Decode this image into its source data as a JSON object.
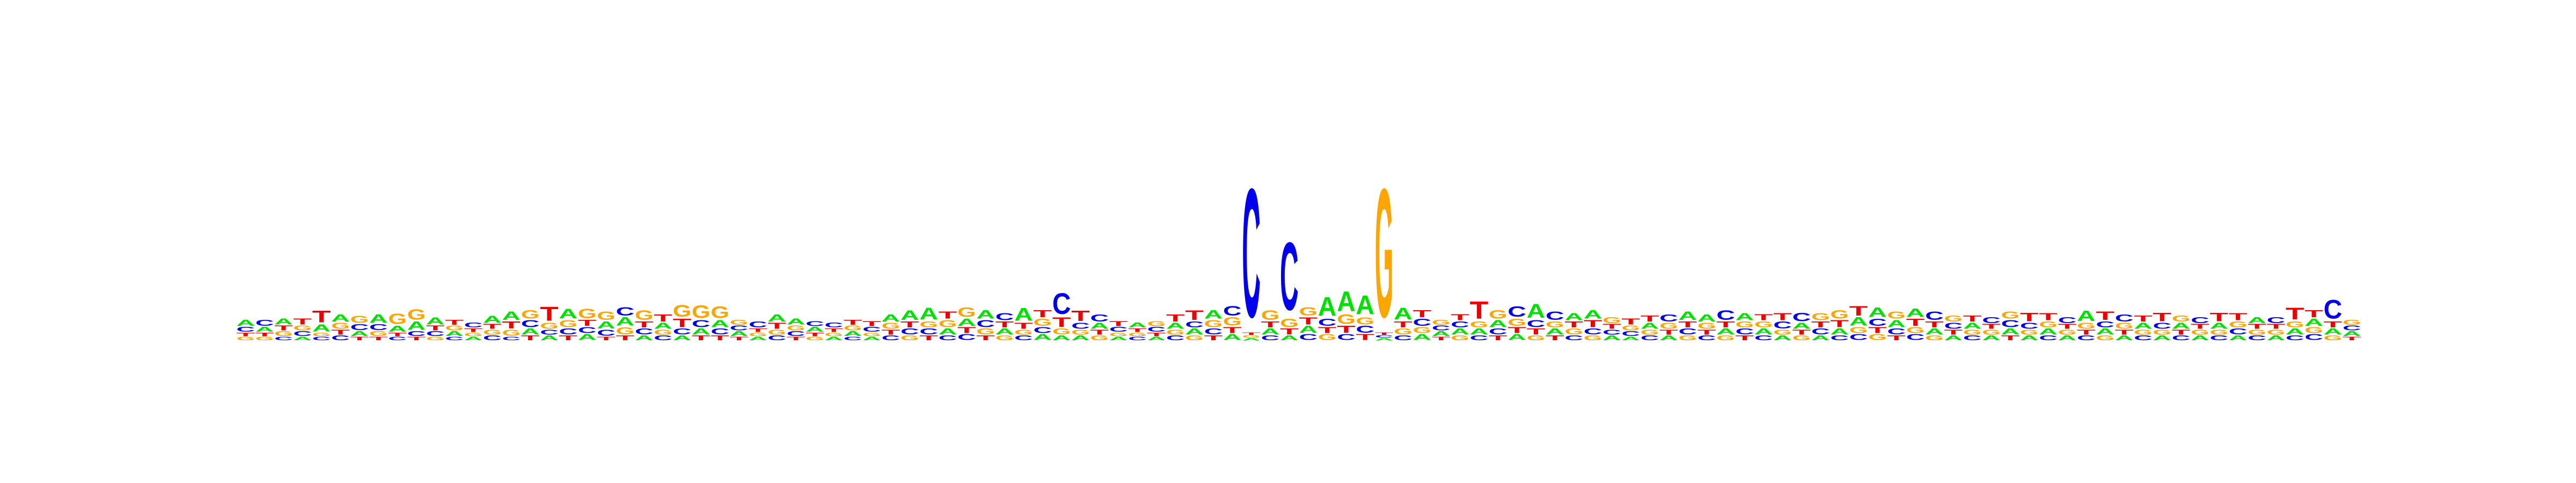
{
  "chart_data": {
    "type": "sequence-logo",
    "title": "",
    "xlabel": "",
    "ylabel": "",
    "axes_visible": false,
    "ylim": [
      0,
      2
    ],
    "alphabet": [
      "A",
      "C",
      "G",
      "T"
    ],
    "colors": {
      "A": "#00e000",
      "C": "#0000ee",
      "G": "#ffa500",
      "T": "#ee0000"
    },
    "positions": [
      {
        "A": 0.05,
        "C": 0.04,
        "G": 0.03,
        "T": 0.03
      },
      {
        "A": 0.04,
        "C": 0.05,
        "G": 0.03,
        "T": 0.03
      },
      {
        "A": 0.05,
        "C": 0.03,
        "G": 0.04,
        "T": 0.04
      },
      {
        "A": 0.03,
        "C": 0.04,
        "G": 0.04,
        "T": 0.05
      },
      {
        "A": 0.06,
        "C": 0.03,
        "G": 0.03,
        "T": 0.1
      },
      {
        "A": 0.06,
        "C": 0.04,
        "G": 0.05,
        "T": 0.04
      },
      {
        "A": 0.04,
        "C": 0.05,
        "G": 0.06,
        "T": 0.03
      },
      {
        "A": 0.07,
        "C": 0.05,
        "G": 0.04,
        "T": 0.03
      },
      {
        "A": 0.05,
        "C": 0.03,
        "G": 0.09,
        "T": 0.03
      },
      {
        "A": 0.07,
        "C": 0.04,
        "G": 0.09,
        "T": 0.03
      },
      {
        "A": 0.06,
        "C": 0.04,
        "G": 0.03,
        "T": 0.04
      },
      {
        "A": 0.04,
        "C": 0.03,
        "G": 0.04,
        "T": 0.04
      },
      {
        "A": 0.03,
        "C": 0.04,
        "G": 0.03,
        "T": 0.03
      },
      {
        "A": 0.06,
        "C": 0.04,
        "G": 0.04,
        "T": 0.04
      },
      {
        "A": 0.07,
        "C": 0.03,
        "G": 0.05,
        "T": 0.06
      },
      {
        "A": 0.05,
        "C": 0.06,
        "G": 0.07,
        "T": 0.04
      },
      {
        "A": 0.04,
        "C": 0.04,
        "G": 0.05,
        "T": 0.12
      },
      {
        "A": 0.08,
        "C": 0.05,
        "G": 0.06,
        "T": 0.04
      },
      {
        "A": 0.05,
        "C": 0.05,
        "G": 0.08,
        "T": 0.05
      },
      {
        "A": 0.06,
        "C": 0.05,
        "G": 0.07,
        "T": 0.03
      },
      {
        "A": 0.07,
        "C": 0.07,
        "G": 0.06,
        "T": 0.04
      },
      {
        "A": 0.04,
        "C": 0.05,
        "G": 0.08,
        "T": 0.05
      },
      {
        "A": 0.05,
        "C": 0.04,
        "G": 0.04,
        "T": 0.06
      },
      {
        "A": 0.04,
        "C": 0.05,
        "G": 0.1,
        "T": 0.07
      },
      {
        "A": 0.05,
        "C": 0.06,
        "G": 0.11,
        "T": 0.04
      },
      {
        "A": 0.06,
        "C": 0.05,
        "G": 0.1,
        "T": 0.04
      },
      {
        "A": 0.04,
        "C": 0.04,
        "G": 0.04,
        "T": 0.03
      },
      {
        "A": 0.03,
        "C": 0.05,
        "G": 0.03,
        "T": 0.03
      },
      {
        "A": 0.06,
        "C": 0.04,
        "G": 0.04,
        "T": 0.05
      },
      {
        "A": 0.05,
        "C": 0.04,
        "G": 0.04,
        "T": 0.03
      },
      {
        "A": 0.04,
        "C": 0.04,
        "G": 0.03,
        "T": 0.03
      },
      {
        "A": 0.03,
        "C": 0.04,
        "G": 0.03,
        "T": 0.03
      },
      {
        "A": 0.04,
        "C": 0.03,
        "G": 0.04,
        "T": 0.04
      },
      {
        "A": 0.03,
        "C": 0.04,
        "G": 0.03,
        "T": 0.04
      },
      {
        "A": 0.06,
        "C": 0.04,
        "G": 0.05,
        "T": 0.04
      },
      {
        "A": 0.08,
        "C": 0.05,
        "G": 0.04,
        "T": 0.05
      },
      {
        "A": 0.1,
        "C": 0.05,
        "G": 0.05,
        "T": 0.04
      },
      {
        "A": 0.05,
        "C": 0.04,
        "G": 0.06,
        "T": 0.06
      },
      {
        "A": 0.06,
        "C": 0.05,
        "G": 0.08,
        "T": 0.05
      },
      {
        "A": 0.07,
        "C": 0.06,
        "G": 0.05,
        "T": 0.04
      },
      {
        "A": 0.05,
        "C": 0.06,
        "G": 0.04,
        "T": 0.05
      },
      {
        "A": 0.11,
        "C": 0.04,
        "G": 0.04,
        "T": 0.05
      },
      {
        "A": 0.05,
        "C": 0.05,
        "G": 0.06,
        "T": 0.06
      },
      {
        "A": 0.04,
        "C": 0.18,
        "G": 0.05,
        "T": 0.08
      },
      {
        "A": 0.04,
        "C": 0.05,
        "G": 0.04,
        "T": 0.09
      },
      {
        "A": 0.05,
        "C": 0.06,
        "G": 0.04,
        "T": 0.04
      },
      {
        "A": 0.03,
        "C": 0.04,
        "G": 0.03,
        "T": 0.04
      },
      {
        "A": 0.04,
        "C": 0.03,
        "G": 0.03,
        "T": 0.03
      },
      {
        "A": 0.03,
        "C": 0.04,
        "G": 0.04,
        "T": 0.03
      },
      {
        "A": 0.05,
        "C": 0.04,
        "G": 0.04,
        "T": 0.06
      },
      {
        "A": 0.05,
        "C": 0.05,
        "G": 0.04,
        "T": 0.08
      },
      {
        "A": 0.07,
        "C": 0.05,
        "G": 0.06,
        "T": 0.04
      },
      {
        "A": 0.05,
        "C": 0.08,
        "G": 0.07,
        "T": 0.05
      },
      {
        "A": 0.02,
        "C": 1.1,
        "G": 0.02,
        "T": 0.02
      },
      {
        "A": 0.05,
        "C": 0.04,
        "G": 0.08,
        "T": 0.05
      },
      {
        "A": 0.04,
        "C": 0.58,
        "G": 0.07,
        "T": 0.05
      },
      {
        "A": 0.06,
        "C": 0.05,
        "G": 0.07,
        "T": 0.06
      },
      {
        "A": 0.16,
        "C": 0.06,
        "G": 0.05,
        "T": 0.05
      },
      {
        "A": 0.17,
        "C": 0.05,
        "G": 0.08,
        "T": 0.06
      },
      {
        "A": 0.16,
        "C": 0.06,
        "G": 0.06,
        "T": 0.05
      },
      {
        "A": 0.02,
        "C": 0.02,
        "G": 1.1,
        "T": 0.02
      },
      {
        "A": 0.1,
        "C": 0.04,
        "G": 0.05,
        "T": 0.05
      },
      {
        "A": 0.05,
        "C": 0.06,
        "G": 0.05,
        "T": 0.06
      },
      {
        "A": 0.04,
        "C": 0.04,
        "G": 0.04,
        "T": 0.03
      },
      {
        "A": 0.05,
        "C": 0.05,
        "G": 0.04,
        "T": 0.05
      },
      {
        "A": 0.05,
        "C": 0.04,
        "G": 0.05,
        "T": 0.15
      },
      {
        "A": 0.06,
        "C": 0.05,
        "G": 0.07,
        "T": 0.04
      },
      {
        "A": 0.05,
        "C": 0.09,
        "G": 0.06,
        "T": 0.05
      },
      {
        "A": 0.12,
        "C": 0.06,
        "G": 0.04,
        "T": 0.05
      },
      {
        "A": 0.05,
        "C": 0.07,
        "G": 0.05,
        "T": 0.04
      },
      {
        "A": 0.06,
        "C": 0.04,
        "G": 0.05,
        "T": 0.05
      },
      {
        "A": 0.07,
        "C": 0.05,
        "G": 0.04,
        "T": 0.06
      },
      {
        "A": 0.04,
        "C": 0.04,
        "G": 0.05,
        "T": 0.04
      },
      {
        "A": 0.03,
        "C": 0.04,
        "G": 0.04,
        "T": 0.05
      },
      {
        "A": 0.05,
        "C": 0.04,
        "G": 0.04,
        "T": 0.05
      },
      {
        "A": 0.04,
        "C": 0.06,
        "G": 0.05,
        "T": 0.04
      },
      {
        "A": 0.07,
        "C": 0.05,
        "G": 0.04,
        "T": 0.05
      },
      {
        "A": 0.06,
        "C": 0.04,
        "G": 0.05,
        "T": 0.04
      },
      {
        "A": 0.05,
        "C": 0.08,
        "G": 0.04,
        "T": 0.05
      },
      {
        "A": 0.06,
        "C": 0.05,
        "G": 0.05,
        "T": 0.04
      },
      {
        "A": 0.05,
        "C": 0.04,
        "G": 0.05,
        "T": 0.05
      },
      {
        "A": 0.04,
        "C": 0.06,
        "G": 0.04,
        "T": 0.06
      },
      {
        "A": 0.05,
        "C": 0.07,
        "G": 0.04,
        "T": 0.04
      },
      {
        "A": 0.04,
        "C": 0.05,
        "G": 0.06,
        "T": 0.05
      },
      {
        "A": 0.05,
        "C": 0.04,
        "G": 0.07,
        "T": 0.06
      },
      {
        "A": 0.07,
        "C": 0.05,
        "G": 0.05,
        "T": 0.08
      },
      {
        "A": 0.08,
        "C": 0.06,
        "G": 0.05,
        "T": 0.05
      },
      {
        "A": 0.06,
        "C": 0.05,
        "G": 0.06,
        "T": 0.04
      },
      {
        "A": 0.07,
        "C": 0.05,
        "G": 0.05,
        "T": 0.06
      },
      {
        "A": 0.05,
        "C": 0.07,
        "G": 0.04,
        "T": 0.05
      },
      {
        "A": 0.04,
        "C": 0.05,
        "G": 0.05,
        "T": 0.04
      },
      {
        "A": 0.05,
        "C": 0.04,
        "G": 0.04,
        "T": 0.05
      },
      {
        "A": 0.04,
        "C": 0.05,
        "G": 0.04,
        "T": 0.04
      },
      {
        "A": 0.05,
        "C": 0.06,
        "G": 0.06,
        "T": 0.04
      },
      {
        "A": 0.04,
        "C": 0.05,
        "G": 0.04,
        "T": 0.07
      },
      {
        "A": 0.05,
        "C": 0.04,
        "G": 0.05,
        "T": 0.06
      },
      {
        "A": 0.04,
        "C": 0.05,
        "G": 0.04,
        "T": 0.04
      },
      {
        "A": 0.09,
        "C": 0.04,
        "G": 0.05,
        "T": 0.04
      },
      {
        "A": 0.05,
        "C": 0.05,
        "G": 0.04,
        "T": 0.07
      },
      {
        "A": 0.04,
        "C": 0.06,
        "G": 0.05,
        "T": 0.04
      },
      {
        "A": 0.05,
        "C": 0.04,
        "G": 0.04,
        "T": 0.05
      },
      {
        "A": 0.04,
        "C": 0.05,
        "G": 0.04,
        "T": 0.07
      },
      {
        "A": 0.05,
        "C": 0.04,
        "G": 0.05,
        "T": 0.04
      },
      {
        "A": 0.04,
        "C": 0.05,
        "G": 0.04,
        "T": 0.04
      },
      {
        "A": 0.05,
        "C": 0.04,
        "G": 0.04,
        "T": 0.07
      },
      {
        "A": 0.04,
        "C": 0.05,
        "G": 0.05,
        "T": 0.06
      },
      {
        "A": 0.05,
        "C": 0.04,
        "G": 0.04,
        "T": 0.04
      },
      {
        "A": 0.04,
        "C": 0.05,
        "G": 0.04,
        "T": 0.04
      },
      {
        "A": 0.05,
        "C": 0.04,
        "G": 0.05,
        "T": 0.1
      },
      {
        "A": 0.06,
        "C": 0.05,
        "G": 0.05,
        "T": 0.06
      },
      {
        "A": 0.05,
        "C": 0.16,
        "G": 0.04,
        "T": 0.05
      },
      {
        "A": 0.04,
        "C": 0.04,
        "G": 0.04,
        "T": 0.03
      }
    ]
  }
}
